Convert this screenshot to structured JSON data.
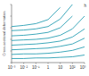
{
  "chart_data": {
    "type": "line",
    "y_label": "Cross-sectional deformation",
    "x_label": "h",
    "log": "x",
    "grid": false,
    "tick_labels": "x",
    "color": "#2a9fb3",
    "x": [
      0.001,
      0.01,
      0.1,
      1,
      10,
      100,
      1000
    ],
    "xlim": [
      0.001,
      1000
    ],
    "xticks": [
      {
        "value": 0.001,
        "label": "10⁻³"
      },
      {
        "value": 0.01,
        "label": "10⁻²"
      },
      {
        "value": 0.1,
        "label": "10⁻¹"
      },
      1,
      10,
      {
        "value": 100,
        "label": "10²"
      },
      {
        "value": 1000,
        "label": "10³"
      }
    ],
    "ylim": [
      0,
      1
    ],
    "yticks": [
      0,
      0.2,
      0.4,
      0.6,
      0.8,
      1
    ],
    "series": [
      {
        "values": [
          0.62,
          0.64,
          0.67,
          0.74,
          0.95,
          null,
          null
        ]
      },
      {
        "values": [
          0.55,
          0.56,
          0.58,
          0.62,
          0.75,
          1.0,
          null
        ]
      },
      {
        "values": [
          0.46,
          0.47,
          0.49,
          0.52,
          0.6,
          0.8,
          null
        ]
      },
      {
        "values": [
          0.38,
          0.39,
          0.4,
          0.42,
          0.47,
          0.58,
          0.8
        ]
      },
      {
        "values": [
          0.3,
          0.31,
          0.32,
          0.34,
          0.37,
          0.44,
          0.58
        ]
      },
      {
        "values": [
          0.22,
          0.23,
          0.24,
          0.25,
          0.28,
          0.32,
          0.42
        ]
      },
      {
        "values": [
          0.14,
          0.15,
          0.15,
          0.16,
          0.18,
          0.21,
          0.27
        ]
      },
      {
        "values": [
          0.07,
          0.07,
          0.08,
          0.08,
          0.09,
          0.1,
          0.13
        ]
      }
    ]
  }
}
